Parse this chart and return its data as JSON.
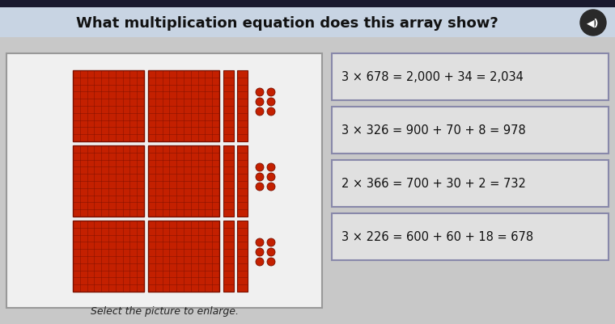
{
  "title": "What multiplication equation does this array show?",
  "title_fontsize": 13,
  "title_bg": "#c8d4e3",
  "top_bar": "#1a1a2e",
  "bg_color": "#c8c8c8",
  "option_bg": "#e0e0e0",
  "option_border": "#8888aa",
  "options": [
    "3 × 678 = 2,000 + 34 = 2,034",
    "3 × 326 = 900 + 70 + 8 = 978",
    "2 × 366 = 700 + 30 + 2 = 732",
    "3 × 226 = 600 + 60 + 18 = 678"
  ],
  "caption": "Select the picture to enlarge.",
  "array_bg": "#e8e8e8",
  "array_border": "#888888",
  "block_color": "#c42000",
  "block_dark": "#7a1000",
  "block_grid_color": "#8b1800"
}
